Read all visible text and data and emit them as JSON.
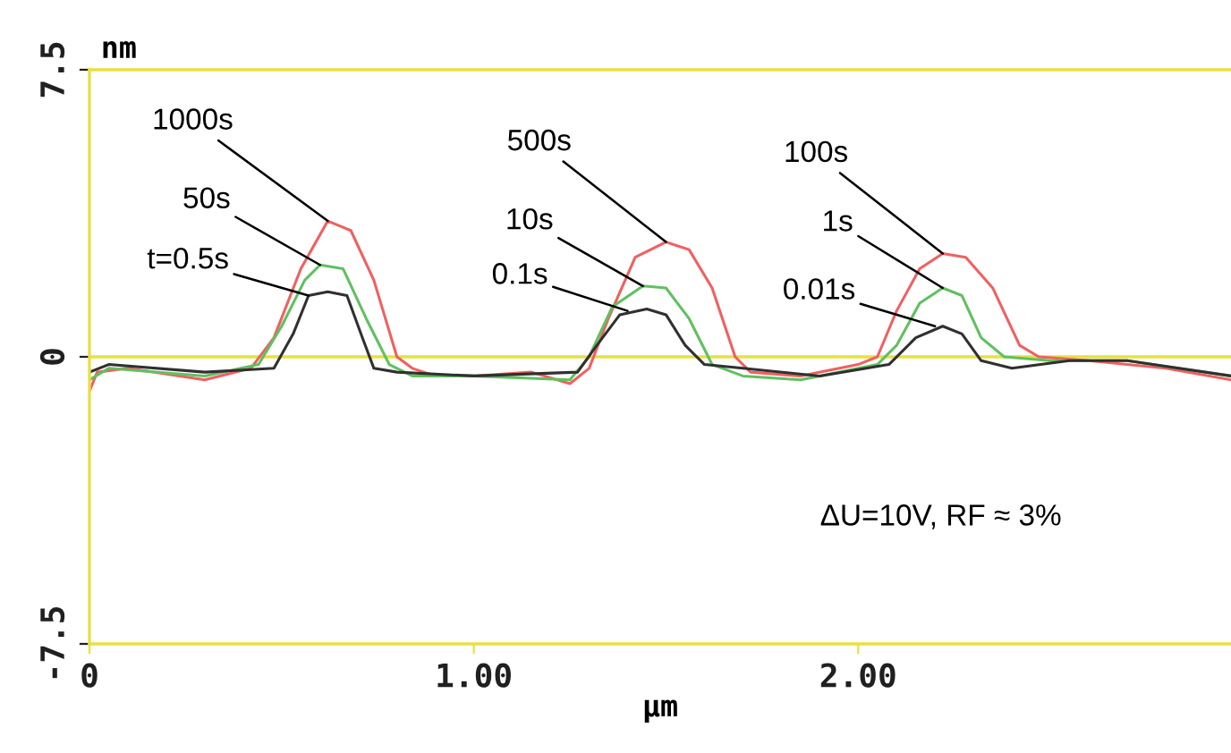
{
  "chart_data": {
    "type": "line",
    "xlabel": "µm",
    "ylabel": "nm",
    "xlim": [
      0,
      2.97
    ],
    "ylim": [
      -7.5,
      7.5
    ],
    "xticks": [
      0,
      {
        "value": 1,
        "label": "1.00"
      },
      {
        "value": 2,
        "label": "2.00"
      }
    ],
    "yticks": [
      {
        "value": -7.5,
        "label": "-7.5"
      },
      0,
      7.5
    ],
    "grid": false,
    "legend": false,
    "marker": "none",
    "line_style": "solid",
    "ref_lines": [
      {
        "axis": "y",
        "value": 0,
        "color": "#e8e040"
      }
    ],
    "series": [
      {
        "color": "#f06060",
        "x": [
          0,
          0.02,
          0.1,
          0.3,
          0.42,
          0.48,
          0.55,
          0.62,
          0.68,
          0.74,
          0.8,
          0.84,
          0.9,
          1.0,
          1.15,
          1.25,
          1.3,
          1.35,
          1.42,
          1.5,
          1.56,
          1.62,
          1.68,
          1.72,
          1.85,
          2.0,
          2.05,
          2.1,
          2.16,
          2.22,
          2.28,
          2.35,
          2.42,
          2.47,
          2.6,
          2.8,
          2.97
        ],
        "values": [
          -0.9,
          -0.4,
          -0.3,
          -0.6,
          -0.3,
          0.5,
          2.3,
          3.55,
          3.3,
          2.0,
          0.0,
          -0.3,
          -0.5,
          -0.5,
          -0.4,
          -0.7,
          -0.3,
          1.0,
          2.6,
          3.0,
          2.8,
          1.8,
          0.0,
          -0.4,
          -0.5,
          -0.2,
          0.0,
          1.2,
          2.3,
          2.7,
          2.6,
          1.8,
          0.3,
          0.0,
          -0.1,
          -0.3,
          -0.6
        ]
      },
      {
        "color": "#60c060",
        "x": [
          0,
          0.05,
          0.3,
          0.44,
          0.5,
          0.56,
          0.6,
          0.66,
          0.72,
          0.78,
          0.84,
          1.0,
          1.25,
          1.3,
          1.36,
          1.44,
          1.5,
          1.56,
          1.62,
          1.7,
          1.85,
          2.05,
          2.1,
          2.16,
          2.22,
          2.27,
          2.32,
          2.38,
          2.5,
          2.7,
          2.97
        ],
        "values": [
          -0.6,
          -0.3,
          -0.5,
          -0.2,
          0.8,
          2.0,
          2.4,
          2.3,
          1.0,
          -0.2,
          -0.5,
          -0.5,
          -0.6,
          0.0,
          1.3,
          1.85,
          1.8,
          1.0,
          -0.2,
          -0.5,
          -0.6,
          -0.2,
          0.3,
          1.4,
          1.8,
          1.6,
          0.5,
          0.0,
          -0.1,
          -0.1,
          -0.5
        ]
      },
      {
        "color": "#303030",
        "x": [
          0,
          0.05,
          0.3,
          0.48,
          0.53,
          0.57,
          0.62,
          0.67,
          0.71,
          0.74,
          0.8,
          1.0,
          1.27,
          1.32,
          1.38,
          1.45,
          1.5,
          1.55,
          1.6,
          1.7,
          1.9,
          2.08,
          2.15,
          2.22,
          2.27,
          2.32,
          2.4,
          2.55,
          2.7,
          2.97
        ],
        "values": [
          -0.4,
          -0.2,
          -0.4,
          -0.3,
          0.6,
          1.6,
          1.7,
          1.6,
          0.5,
          -0.3,
          -0.4,
          -0.5,
          -0.4,
          0.3,
          1.1,
          1.25,
          1.1,
          0.3,
          -0.2,
          -0.3,
          -0.5,
          -0.2,
          0.5,
          0.8,
          0.6,
          -0.1,
          -0.3,
          -0.1,
          -0.1,
          -0.5
        ]
      }
    ],
    "annotations": [
      {
        "text": "1000s",
        "x": 0.62,
        "y": 3.55
      },
      {
        "text": "50s",
        "x": 0.6,
        "y": 2.4
      },
      {
        "text": "t=0.5s",
        "x": 0.57,
        "y": 1.6
      },
      {
        "text": "500s",
        "x": 1.5,
        "y": 3.0
      },
      {
        "text": "10s",
        "x": 1.44,
        "y": 1.85
      },
      {
        "text": "0.1s",
        "x": 1.4,
        "y": 1.2
      },
      {
        "text": "100s",
        "x": 2.22,
        "y": 2.7
      },
      {
        "text": "1s",
        "x": 2.22,
        "y": 1.8
      },
      {
        "text": "0.01s",
        "x": 2.2,
        "y": 0.8
      },
      "ΔU=10V, RF ≈ 3%"
    ]
  }
}
